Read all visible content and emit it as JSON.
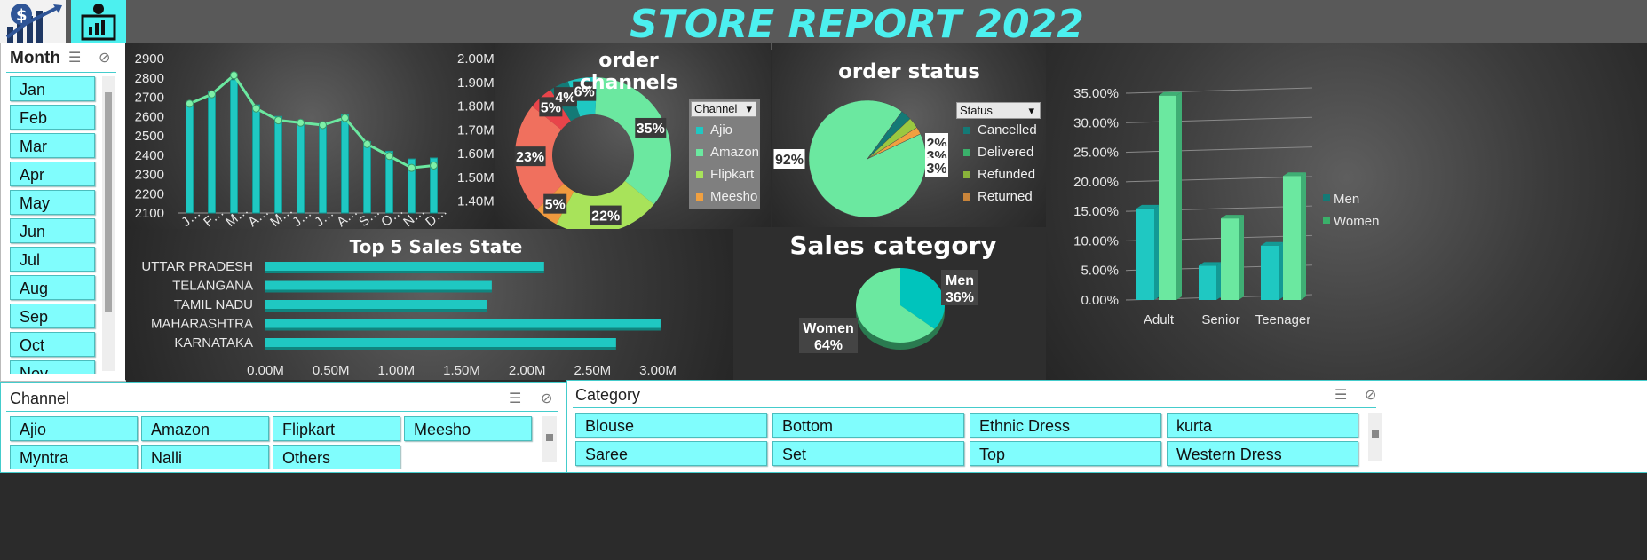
{
  "header": {
    "title": "STORE REPORT 2022"
  },
  "month_slicer": {
    "title": "Month",
    "items": [
      "Jan",
      "Feb",
      "Mar",
      "Apr",
      "May",
      "Jun",
      "Jul",
      "Aug",
      "Sep",
      "Oct",
      "Nov"
    ]
  },
  "channel_slicer": {
    "title": "Channel",
    "items": [
      "Ajio",
      "Amazon",
      "Flipkart",
      "Meesho",
      "Myntra",
      "Nalli",
      "Others"
    ]
  },
  "category_slicer": {
    "title": "Category",
    "items": [
      "Blouse",
      "Bottom",
      "Ethnic Dress",
      "kurta",
      "Saree",
      "Set",
      "Top",
      "Western Dress"
    ]
  },
  "colors": {
    "teal": "#1fc8c2",
    "green": "#6be8a0",
    "cyan_accent": "#4cf0ef"
  },
  "chart_data": [
    {
      "type": "bar",
      "id": "monthly-orders-sales",
      "categories": [
        "J…",
        "F…",
        "M…",
        "A…",
        "M…",
        "J…",
        "J…",
        "A…",
        "S…",
        "O…",
        "N…",
        "D…"
      ],
      "series": [
        {
          "type": "bar",
          "axis": "left",
          "values": [
            2655,
            2730,
            2790,
            2660,
            2600,
            2570,
            2565,
            2610,
            2470,
            2420,
            2380,
            2385
          ]
        },
        {
          "type": "line",
          "axis": "right",
          "values": [
            1.81,
            1.85,
            1.93,
            1.79,
            1.74,
            1.73,
            1.72,
            1.75,
            1.64,
            1.59,
            1.54,
            1.55
          ]
        }
      ],
      "ylim_left": [
        2100,
        2900
      ],
      "yticks_left": [
        "2100",
        "2200",
        "2300",
        "2400",
        "2500",
        "2600",
        "2700",
        "2800",
        "2900"
      ],
      "ylim_right": [
        1.35,
        2.0
      ],
      "yticks_right": [
        "1.40M",
        "1.50M",
        "1.60M",
        "1.70M",
        "1.80M",
        "1.90M",
        "2.00M"
      ]
    },
    {
      "type": "pie",
      "id": "order-channels",
      "title": "order channels",
      "donut": true,
      "slices": [
        {
          "label": "Amazon",
          "value": 35,
          "text": "35%",
          "color": "#6be8a0"
        },
        {
          "label": "Flipkart",
          "value": 22,
          "text": "22%",
          "color": "#a8e35a"
        },
        {
          "label": "Meesho",
          "value": 5,
          "text": "5%",
          "color": "#f09a3e"
        },
        {
          "label": "Myntra",
          "value": 23,
          "text": "23%",
          "color": "#f0705e"
        },
        {
          "label": "Nalli",
          "value": 5,
          "text": "5%",
          "color": "#e8444a"
        },
        {
          "label": "Others",
          "value": 4,
          "text": "4%",
          "color": "#147a76"
        },
        {
          "label": "Ajio",
          "value": 6,
          "text": "6%",
          "color": "#1fc8c2"
        }
      ],
      "legend": {
        "header": "Channel",
        "items": [
          "Ajio",
          "Amazon",
          "Flipkart",
          "Meesho"
        ],
        "colors": [
          "#1fc8c2",
          "#6be8a0",
          "#a8e35a",
          "#f0a040"
        ]
      }
    },
    {
      "type": "pie",
      "id": "order-status",
      "title": "order status",
      "slices": [
        {
          "label": "Delivered",
          "value": 92,
          "text": "92%"
        },
        {
          "label": "Cancelled",
          "value": 3,
          "text": "3%"
        },
        {
          "label": "Refunded",
          "value": 3,
          "text": "3%"
        },
        {
          "label": "Returned",
          "value": 2,
          "text": "2%"
        }
      ],
      "legend": {
        "header": "Status",
        "items": [
          "Cancelled",
          "Delivered",
          "Refunded",
          "Returned"
        ],
        "colors": [
          "#147a76",
          "#3ab06a",
          "#8ab33a",
          "#c8843a"
        ]
      }
    },
    {
      "type": "bar",
      "id": "age-gender",
      "categories": [
        "Adult",
        "Senior",
        "Teenager"
      ],
      "series": [
        {
          "name": "Men",
          "values": [
            15.5,
            5.8,
            9.2
          ]
        },
        {
          "name": "Women",
          "values": [
            34.6,
            13.8,
            21.0
          ]
        }
      ],
      "ylim": [
        0,
        35
      ],
      "yticks": [
        "0.00%",
        "5.00%",
        "10.00%",
        "15.00%",
        "20.00%",
        "25.00%",
        "30.00%",
        "35.00%"
      ]
    },
    {
      "type": "bar",
      "id": "top5-states",
      "title": "Top 5 Sales State",
      "orientation": "horizontal",
      "categories": [
        "UTTAR PRADESH",
        "TELANGANA",
        "TAMIL NADU",
        "MAHARASHTRA",
        "KARNATAKA"
      ],
      "values": [
        2.13,
        1.73,
        1.69,
        3.02,
        2.68
      ],
      "xlim": [
        0,
        3.0
      ],
      "xticks": [
        "0.00M",
        "0.50M",
        "1.00M",
        "1.50M",
        "2.00M",
        "2.50M",
        "3.00M"
      ]
    },
    {
      "type": "pie",
      "id": "sales-category",
      "title": "Sales  category",
      "slices": [
        {
          "label": "Men",
          "value": 36,
          "text": "36%"
        },
        {
          "label": "Women",
          "value": 64,
          "text": "64%"
        }
      ]
    }
  ]
}
